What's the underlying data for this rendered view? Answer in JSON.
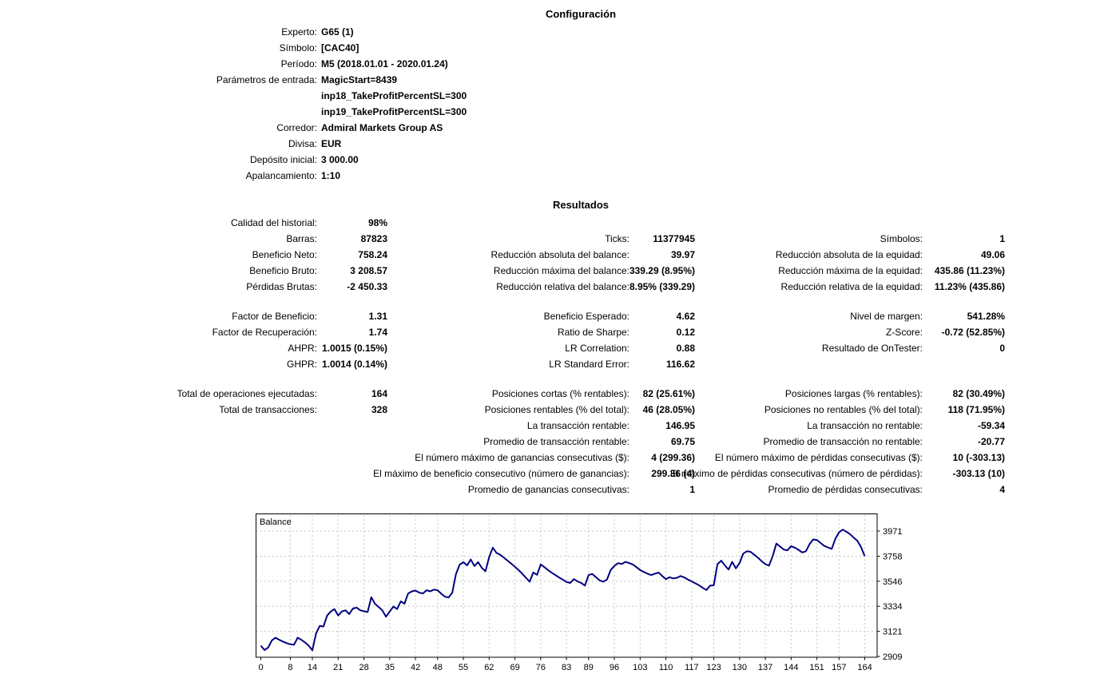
{
  "config": {
    "title": "Configuración",
    "rows": [
      {
        "label": "Experto:",
        "value": "G65 (1)"
      },
      {
        "label": "Símbolo:",
        "value": "[CAC40]"
      },
      {
        "label": "Período:",
        "value": "M5 (2018.01.01 - 2020.01.24)"
      },
      {
        "label": "Parámetros de entrada:",
        "value": "MagicStart=8439"
      },
      {
        "label": "",
        "value": "inp18_TakeProfitPercentSL=300"
      },
      {
        "label": "",
        "value": "inp19_TakeProfitPercentSL=300"
      },
      {
        "label": "Corredor:",
        "value": "Admiral Markets Group AS"
      },
      {
        "label": "Divisa:",
        "value": "EUR"
      },
      {
        "label": "Depósito inicial:",
        "value": "3 000.00"
      },
      {
        "label": "Apalancamiento:",
        "value": "1:10"
      }
    ]
  },
  "results": {
    "title": "Resultados",
    "blocks": [
      {
        "rows": [
          {
            "l1": "Calidad del historial:",
            "v1": "98%",
            "l2": "",
            "v2": "",
            "l3": "",
            "v3": ""
          },
          {
            "l1": "Barras:",
            "v1": "87823",
            "l2": "Ticks:",
            "v2": "11377945",
            "l3": "Símbolos:",
            "v3": "1"
          },
          {
            "l1": "Beneficio Neto:",
            "v1": "758.24",
            "l2": "Reducción absoluta del balance:",
            "v2": "39.97",
            "l3": "Reducción absoluta de la equidad:",
            "v3": "49.06"
          },
          {
            "l1": "Beneficio Bruto:",
            "v1": "3 208.57",
            "l2": "Reducción máxima del balance:",
            "v2": "339.29 (8.95%)",
            "l3": "Reducción máxima de la equidad:",
            "v3": "435.86 (11.23%)"
          },
          {
            "l1": "Pérdidas Brutas:",
            "v1": "-2 450.33",
            "l2": "Reducción relativa del balance:",
            "v2": "8.95% (339.29)",
            "l3": "Reducción relativa de la equidad:",
            "v3": "11.23% (435.86)"
          }
        ]
      },
      {
        "rows": [
          {
            "l1": "Factor de Beneficio:",
            "v1": "1.31",
            "l2": "Beneficio Esperado:",
            "v2": "4.62",
            "l3": "Nivel de margen:",
            "v3": "541.28%"
          },
          {
            "l1": "Factor de Recuperación:",
            "v1": "1.74",
            "l2": "Ratio de Sharpe:",
            "v2": "0.12",
            "l3": "Z-Score:",
            "v3": "-0.72 (52.85%)"
          },
          {
            "l1": "AHPR:",
            "v1": "1.0015 (0.15%)",
            "l2": "LR Correlation:",
            "v2": "0.88",
            "l3": "Resultado de OnTester:",
            "v3": "0"
          },
          {
            "l1": "GHPR:",
            "v1": "1.0014 (0.14%)",
            "l2": "LR Standard Error:",
            "v2": "116.62",
            "l3": "",
            "v3": ""
          }
        ]
      },
      {
        "rows": [
          {
            "l1": "Total de operaciones ejecutadas:",
            "v1": "164",
            "l2": "Posiciones cortas (% rentables):",
            "v2": "82 (25.61%)",
            "l3": "Posiciones largas (% rentables):",
            "v3": "82 (30.49%)"
          },
          {
            "l1": "Total de transacciones:",
            "v1": "328",
            "l2": "Posiciones rentables (% del total):",
            "v2": "46 (28.05%)",
            "l3": "Posiciones no rentables (% del total):",
            "v3": "118 (71.95%)"
          },
          {
            "l1": "",
            "v1": "",
            "l2": "La transacción rentable:",
            "v2": "146.95",
            "l3": "La transacción no rentable:",
            "v3": "-59.34"
          },
          {
            "l1": "",
            "v1": "",
            "l2": "Promedio de transacción rentable:",
            "v2": "69.75",
            "l3": "Promedio de transacción no rentable:",
            "v3": "-20.77"
          },
          {
            "l1": "",
            "v1": "",
            "l2": "El número máximo de ganancias consecutivas ($):",
            "v2": "4 (299.36)",
            "l3": "El número máximo de pérdidas consecutivas ($):",
            "v3": "10 (-303.13)"
          },
          {
            "l1": "",
            "v1": "",
            "l2": "El máximo de beneficio consecutivo (número de ganancias):",
            "v2": "299.36 (4)",
            "l3": "El máximo de pérdidas consecutivas (número de pérdidas):",
            "v3": "-303.13 (10)"
          },
          {
            "l1": "",
            "v1": "",
            "l2": "Promedio de ganancias consecutivas:",
            "v2": "1",
            "l3": "Promedio de pérdidas consecutivas:",
            "v3": "4"
          }
        ]
      }
    ]
  },
  "chart_data": {
    "type": "line",
    "title": "Balance",
    "legend_label": "Balance",
    "line_color": "#000080",
    "grid_color": "#c8c8c8",
    "x_ticks": [
      0,
      8,
      14,
      21,
      28,
      35,
      42,
      48,
      55,
      62,
      69,
      76,
      83,
      89,
      96,
      103,
      110,
      117,
      123,
      130,
      137,
      144,
      151,
      157,
      164
    ],
    "y_ticks": [
      2909,
      3121,
      3334,
      3546,
      3758,
      3971
    ],
    "xlim": [
      0,
      167
    ],
    "ylim": [
      2909,
      4106
    ],
    "values": [
      3000,
      2963,
      2985,
      3045,
      3068,
      3050,
      3035,
      3022,
      3012,
      3008,
      3068,
      3050,
      3028,
      3000,
      2961,
      3105,
      3168,
      3162,
      3255,
      3290,
      3310,
      3256,
      3290,
      3300,
      3268,
      3315,
      3322,
      3300,
      3292,
      3285,
      3410,
      3355,
      3328,
      3300,
      3245,
      3290,
      3332,
      3310,
      3376,
      3355,
      3442,
      3460,
      3467,
      3450,
      3442,
      3470,
      3460,
      3475,
      3470,
      3440,
      3415,
      3408,
      3450,
      3608,
      3686,
      3708,
      3680,
      3730,
      3675,
      3708,
      3660,
      3630,
      3750,
      3830,
      3786,
      3770,
      3745,
      3720,
      3695,
      3668,
      3640,
      3610,
      3575,
      3542,
      3620,
      3600,
      3688,
      3665,
      3640,
      3618,
      3598,
      3578,
      3560,
      3540,
      3531,
      3564,
      3545,
      3531,
      3509,
      3598,
      3608,
      3580,
      3553,
      3542,
      3560,
      3641,
      3676,
      3699,
      3692,
      3710,
      3700,
      3688,
      3665,
      3641,
      3625,
      3610,
      3598,
      3610,
      3620,
      3590,
      3564,
      3580,
      3570,
      3575,
      3590,
      3578,
      3560,
      3545,
      3528,
      3512,
      3490,
      3472,
      3508,
      3512,
      3690,
      3720,
      3680,
      3645,
      3710,
      3655,
      3700,
      3780,
      3800,
      3795,
      3770,
      3745,
      3715,
      3690,
      3678,
      3760,
      3865,
      3840,
      3815,
      3808,
      3843,
      3830,
      3812,
      3790,
      3800,
      3860,
      3900,
      3895,
      3870,
      3845,
      3832,
      3820,
      3905,
      3960,
      3983,
      3965,
      3945,
      3915,
      3888,
      3835,
      3758
    ]
  }
}
